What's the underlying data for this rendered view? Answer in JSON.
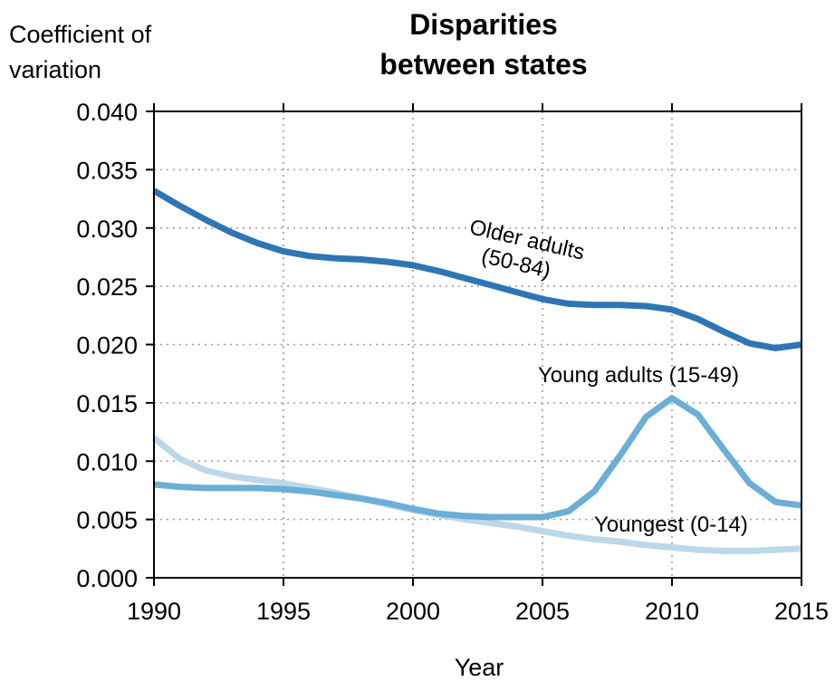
{
  "chart_data": {
    "type": "line",
    "title_lines": [
      "Disparities",
      "between states"
    ],
    "ylabel_lines": [
      "Coefficient of",
      "variation"
    ],
    "xlabel": "Year",
    "xlim": [
      1990,
      2015
    ],
    "ylim": [
      0,
      0.04
    ],
    "x_ticks": [
      1990,
      1995,
      2000,
      2005,
      2010,
      2015
    ],
    "x_tick_labels": [
      "1990",
      "1995",
      "2000",
      "2005",
      "2010",
      "2015"
    ],
    "y_ticks": [
      0,
      0.005,
      0.01,
      0.015,
      0.02,
      0.025,
      0.03,
      0.035,
      0.04
    ],
    "y_tick_labels": [
      "0.000",
      "0.005",
      "0.010",
      "0.015",
      "0.020",
      "0.025",
      "0.030",
      "0.035",
      "0.040"
    ],
    "grid": true,
    "x": [
      1990,
      1991,
      1992,
      1993,
      1994,
      1995,
      1996,
      1997,
      1998,
      1999,
      2000,
      2001,
      2002,
      2003,
      2004,
      2005,
      2006,
      2007,
      2008,
      2009,
      2010,
      2011,
      2012,
      2013,
      2014,
      2015
    ],
    "series": [
      {
        "name": "Older adults (50-84)",
        "label_lines": [
          "Older adults",
          "(50-84)"
        ],
        "color": "#2e75b6",
        "values": [
          0.0332,
          0.0319,
          0.0307,
          0.0296,
          0.0287,
          0.028,
          0.0276,
          0.0274,
          0.0273,
          0.0271,
          0.0268,
          0.0263,
          0.0257,
          0.0251,
          0.0245,
          0.0239,
          0.0235,
          0.0234,
          0.0234,
          0.0233,
          0.023,
          0.0222,
          0.0211,
          0.0201,
          0.0197,
          0.02
        ]
      },
      {
        "name": "Young adults (15-49)",
        "label_lines": [
          "Young adults (15-49)"
        ],
        "color": "#6baed6",
        "values": [
          0.008,
          0.0078,
          0.0077,
          0.0077,
          0.0077,
          0.0076,
          0.0074,
          0.0071,
          0.0068,
          0.0064,
          0.0059,
          0.0055,
          0.0053,
          0.0052,
          0.0052,
          0.0052,
          0.0057,
          0.0074,
          0.0105,
          0.0138,
          0.0154,
          0.014,
          0.011,
          0.0081,
          0.0065,
          0.0062
        ]
      },
      {
        "name": "Youngest (0-14)",
        "label_lines": [
          "Youngest (0-14)"
        ],
        "color": "#bcd7ea",
        "values": [
          0.012,
          0.0102,
          0.0092,
          0.0087,
          0.0084,
          0.0081,
          0.0077,
          0.0073,
          0.0068,
          0.0063,
          0.0058,
          0.0054,
          0.005,
          0.0047,
          0.0044,
          0.004,
          0.0036,
          0.0033,
          0.0031,
          0.0028,
          0.0026,
          0.0024,
          0.0023,
          0.0023,
          0.0024,
          0.0025
        ]
      }
    ]
  }
}
